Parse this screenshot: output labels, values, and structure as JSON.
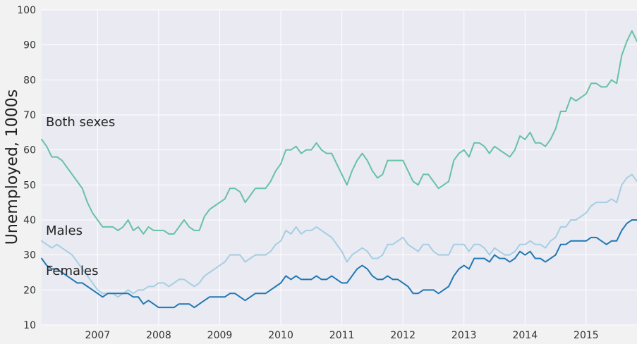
{
  "chart_data": {
    "type": "line",
    "title": "",
    "xlabel": "",
    "ylabel": "Unemployed, 1000s",
    "ylim": [
      10,
      100
    ],
    "xlim": [
      "2006-02",
      "2015-11"
    ],
    "grid": true,
    "legend": "none",
    "x_ticks": [
      "2007",
      "2008",
      "2009",
      "2010",
      "2011",
      "2012",
      "2013",
      "2014",
      "2015"
    ],
    "y_ticks": [
      "10",
      "20",
      "30",
      "40",
      "50",
      "60",
      "70",
      "80",
      "90",
      "100"
    ],
    "x_start": "2006-02",
    "frequency": "monthly",
    "annotations": [
      {
        "text": "Both sexes",
        "series": "Both sexes"
      },
      {
        "text": "Males",
        "series": "Males"
      },
      {
        "text": "Females",
        "series": "Females"
      }
    ],
    "series": [
      {
        "name": "Both sexes",
        "color": "#66c2a5",
        "values": [
          63,
          61,
          58,
          58,
          57,
          55,
          53,
          51,
          49,
          45,
          42,
          40,
          38,
          38,
          38,
          37,
          38,
          40,
          37,
          38,
          36,
          38,
          37,
          37,
          37,
          36,
          36,
          38,
          40,
          38,
          37,
          37,
          41,
          43,
          44,
          45,
          46,
          49,
          49,
          48,
          45,
          47,
          49,
          49,
          49,
          51,
          54,
          56,
          60,
          60,
          61,
          59,
          60,
          60,
          62,
          60,
          59,
          59,
          56,
          53,
          50,
          54,
          57,
          59,
          57,
          54,
          52,
          53,
          57,
          57,
          57,
          57,
          54,
          51,
          50,
          53,
          53,
          51,
          49,
          50,
          51,
          57,
          59,
          60,
          58,
          62,
          62,
          61,
          59,
          61,
          60,
          59,
          58,
          60,
          64,
          63,
          65,
          62,
          62,
          61,
          63,
          66,
          71,
          71,
          75,
          74,
          75,
          76,
          79,
          79,
          78,
          78,
          80,
          79,
          87,
          91,
          94,
          91
        ]
      },
      {
        "name": "Males",
        "color": "#a6cee3",
        "values": [
          34,
          33,
          32,
          33,
          32,
          31,
          30,
          28,
          26,
          24,
          22,
          20,
          19,
          19,
          19,
          18,
          19,
          20,
          19,
          20,
          20,
          21,
          21,
          22,
          22,
          21,
          22,
          23,
          23,
          22,
          21,
          22,
          24,
          25,
          26,
          27,
          28,
          30,
          30,
          30,
          28,
          29,
          30,
          30,
          30,
          31,
          33,
          34,
          37,
          36,
          38,
          36,
          37,
          37,
          38,
          37,
          36,
          35,
          33,
          31,
          28,
          30,
          31,
          32,
          31,
          29,
          29,
          30,
          33,
          33,
          34,
          35,
          33,
          32,
          31,
          33,
          33,
          31,
          30,
          30,
          30,
          33,
          33,
          33,
          31,
          33,
          33,
          32,
          30,
          32,
          31,
          30,
          30,
          31,
          33,
          33,
          34,
          33,
          33,
          32,
          34,
          35,
          38,
          38,
          40,
          40,
          41,
          42,
          44,
          45,
          45,
          45,
          46,
          45,
          50,
          52,
          53,
          51
        ]
      },
      {
        "name": "Females",
        "color": "#1f78b4",
        "values": [
          29,
          27,
          26,
          26,
          25,
          24,
          23,
          22,
          22,
          21,
          20,
          19,
          18,
          19,
          19,
          19,
          19,
          19,
          18,
          18,
          16,
          17,
          16,
          15,
          15,
          15,
          15,
          16,
          16,
          16,
          15,
          16,
          17,
          18,
          18,
          18,
          18,
          19,
          19,
          18,
          17,
          18,
          19,
          19,
          19,
          20,
          21,
          22,
          24,
          23,
          24,
          23,
          23,
          23,
          24,
          23,
          23,
          24,
          23,
          22,
          22,
          24,
          26,
          27,
          26,
          24,
          23,
          23,
          24,
          23,
          23,
          22,
          21,
          19,
          19,
          20,
          20,
          20,
          19,
          20,
          21,
          24,
          26,
          27,
          26,
          29,
          29,
          29,
          28,
          30,
          29,
          29,
          28,
          29,
          31,
          30,
          31,
          29,
          29,
          28,
          29,
          30,
          33,
          33,
          34,
          34,
          34,
          34,
          35,
          35,
          34,
          33,
          34,
          34,
          37,
          39,
          40,
          40
        ]
      }
    ]
  }
}
